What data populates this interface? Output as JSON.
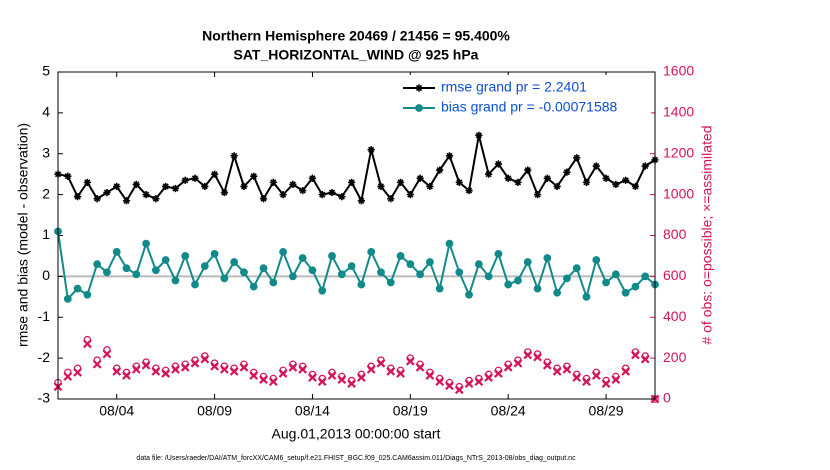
{
  "chart_data": {
    "type": "line",
    "title": "Northern Hemisphere 20469 / 21456 = 95.400%",
    "subtitle": "SAT_HORIZONTAL_WIND @ 925 hPa",
    "xlabel": "Aug.01,2013 00:00:00 start",
    "ylabel": "rmse and bias (model - observation)",
    "y2label": "# of obs: o=possible; ×=assimilated",
    "footnote": "data file: /Users/raeder/DAI/ATM_forcXX/CAM6_setup/f.e21.FHIST_BGC.f09_025.CAM6assim.011/Diags_NTrS_2013-08/obs_diag_output.nc",
    "legend": "upper right",
    "hline": 0,
    "xlim": [
      0,
      30.5
    ],
    "xticks": [
      {
        "value": 3,
        "label": "08/04"
      },
      {
        "value": 8,
        "label": "08/09"
      },
      {
        "value": 13,
        "label": "08/14"
      },
      {
        "value": 18,
        "label": "08/19"
      },
      {
        "value": 23,
        "label": "08/24"
      },
      {
        "value": 28,
        "label": "08/29"
      }
    ],
    "ylim": [
      -3,
      5
    ],
    "yticks": [
      -3,
      -2,
      -1,
      0,
      1,
      2,
      3,
      4,
      5
    ],
    "y2lim": [
      0,
      1600
    ],
    "y2ticks": [
      0,
      200,
      400,
      600,
      800,
      1000,
      1200,
      1400,
      1600
    ],
    "x": [
      0,
      0.5,
      1,
      1.5,
      2,
      2.5,
      3,
      3.5,
      4,
      4.5,
      5,
      5.5,
      6,
      6.5,
      7,
      7.5,
      8,
      8.5,
      9,
      9.5,
      10,
      10.5,
      11,
      11.5,
      12,
      12.5,
      13,
      13.5,
      14,
      14.5,
      15,
      15.5,
      16,
      16.5,
      17,
      17.5,
      18,
      18.5,
      19,
      19.5,
      20,
      20.5,
      21,
      21.5,
      22,
      22.5,
      23,
      23.5,
      24,
      24.5,
      25,
      25.5,
      26,
      26.5,
      27,
      27.5,
      28,
      28.5,
      29,
      29.5,
      30,
      30.5
    ],
    "series": [
      {
        "name": "rmse grand pr = 2.2401",
        "color": "#000000",
        "marker": "asterisk",
        "line": true,
        "values": [
          2.5,
          2.45,
          1.95,
          2.3,
          1.9,
          2.05,
          2.2,
          1.85,
          2.25,
          2.0,
          1.9,
          2.2,
          2.15,
          2.35,
          2.4,
          2.2,
          2.5,
          2.05,
          2.95,
          2.2,
          2.45,
          1.9,
          2.3,
          2.0,
          2.25,
          2.1,
          2.4,
          2.0,
          2.05,
          1.95,
          2.3,
          1.85,
          3.1,
          2.2,
          1.9,
          2.3,
          2.0,
          2.4,
          2.2,
          2.6,
          2.95,
          2.3,
          2.1,
          3.45,
          2.5,
          2.75,
          2.4,
          2.3,
          2.6,
          2.0,
          2.4,
          2.2,
          2.55,
          2.9,
          2.3,
          2.7,
          2.4,
          2.25,
          2.35,
          2.2,
          2.7,
          2.85
        ]
      },
      {
        "name": "bias grand pr = -0.00071588",
        "color": "#138a8a",
        "marker": "circle",
        "line": true,
        "values": [
          1.1,
          -0.55,
          -0.3,
          -0.45,
          0.3,
          0.1,
          0.6,
          0.2,
          0.05,
          0.8,
          0.15,
          0.4,
          -0.1,
          0.5,
          -0.2,
          0.25,
          0.55,
          -0.05,
          0.35,
          0.1,
          -0.25,
          0.2,
          -0.15,
          0.6,
          0.0,
          0.45,
          0.15,
          -0.35,
          0.5,
          0.05,
          0.25,
          -0.2,
          0.6,
          0.1,
          -0.15,
          0.5,
          0.3,
          0.05,
          0.35,
          -0.3,
          0.8,
          0.1,
          -0.45,
          0.3,
          0.0,
          0.55,
          -0.2,
          -0.1,
          0.35,
          -0.3,
          0.45,
          -0.4,
          -0.05,
          0.2,
          -0.5,
          0.4,
          -0.15,
          0.05,
          -0.4,
          -0.25,
          0.0,
          -0.2
        ]
      },
      {
        "color": "#d4145a",
        "marker": "circle-open",
        "line": false,
        "axis": "y2",
        "values": [
          80,
          130,
          150,
          290,
          190,
          240,
          150,
          130,
          160,
          180,
          150,
          140,
          160,
          170,
          190,
          210,
          175,
          160,
          150,
          170,
          130,
          110,
          100,
          140,
          170,
          160,
          120,
          100,
          130,
          110,
          90,
          120,
          160,
          190,
          150,
          140,
          200,
          170,
          130,
          100,
          80,
          60,
          90,
          100,
          120,
          140,
          170,
          190,
          230,
          220,
          180,
          150,
          160,
          120,
          100,
          130,
          90,
          110,
          150,
          230,
          210,
          0
        ]
      },
      {
        "color": "#d4145a",
        "marker": "x",
        "line": false,
        "axis": "y2",
        "values": [
          60,
          110,
          130,
          270,
          170,
          220,
          135,
          115,
          145,
          165,
          135,
          125,
          145,
          155,
          175,
          195,
          160,
          145,
          135,
          155,
          115,
          95,
          85,
          125,
          155,
          145,
          105,
          85,
          115,
          95,
          75,
          105,
          145,
          175,
          135,
          125,
          185,
          155,
          115,
          85,
          65,
          45,
          75,
          85,
          105,
          125,
          155,
          175,
          215,
          205,
          165,
          135,
          145,
          105,
          85,
          115,
          75,
          95,
          135,
          215,
          195,
          0
        ]
      }
    ]
  }
}
